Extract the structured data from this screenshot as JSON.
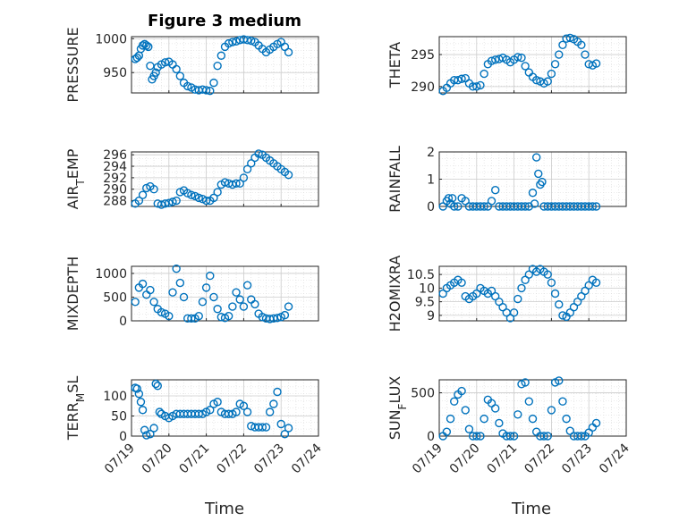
{
  "figure": {
    "title": "Figure 3 medium",
    "xlabel": "Time",
    "marker_color": "#0072bd"
  },
  "chart_data": [
    {
      "type": "scatter",
      "ylabel": "PRESSURE",
      "title": "Figure 3 medium",
      "xticks": [
        "07/19",
        "07/20",
        "07/21",
        "07/22",
        "07/23",
        "07/24"
      ],
      "xlim": [
        0,
        5
      ],
      "ylim": [
        920,
        1003
      ],
      "yticks": [
        950,
        1000
      ],
      "yticklabels": [
        "950",
        "1000"
      ],
      "x": [
        0.1,
        0.15,
        0.2,
        0.25,
        0.3,
        0.35,
        0.4,
        0.45,
        0.5,
        0.55,
        0.6,
        0.65,
        0.7,
        0.8,
        0.9,
        1.0,
        1.1,
        1.2,
        1.3,
        1.4,
        1.5,
        1.6,
        1.7,
        1.8,
        1.9,
        2.0,
        2.1,
        2.2,
        2.3,
        2.4,
        2.5,
        2.6,
        2.7,
        2.8,
        2.9,
        3.0,
        3.1,
        3.2,
        3.3,
        3.4,
        3.5,
        3.6,
        3.7,
        3.8,
        3.9,
        4.0,
        4.1,
        4.2
      ],
      "y": [
        970,
        972,
        975,
        985,
        990,
        992,
        990,
        988,
        960,
        940,
        945,
        950,
        958,
        962,
        965,
        966,
        962,
        955,
        945,
        935,
        930,
        928,
        925,
        924,
        925,
        924,
        923,
        935,
        960,
        975,
        988,
        993,
        995,
        996,
        998,
        999,
        998,
        997,
        995,
        990,
        985,
        980,
        984,
        988,
        992,
        995,
        988,
        980
      ]
    },
    {
      "type": "scatter",
      "ylabel": "THETA",
      "xticks": [
        "07/19",
        "07/20",
        "07/21",
        "07/22",
        "07/23",
        "07/24"
      ],
      "xlim": [
        0,
        5
      ],
      "ylim": [
        289,
        297.8
      ],
      "yticks": [
        290,
        295
      ],
      "yticklabels": [
        "290",
        "295"
      ],
      "x": [
        0.1,
        0.2,
        0.3,
        0.4,
        0.5,
        0.6,
        0.7,
        0.8,
        0.9,
        1.0,
        1.1,
        1.2,
        1.3,
        1.4,
        1.5,
        1.6,
        1.7,
        1.8,
        1.9,
        2.0,
        2.1,
        2.2,
        2.3,
        2.4,
        2.5,
        2.6,
        2.7,
        2.8,
        2.9,
        3.0,
        3.1,
        3.2,
        3.3,
        3.4,
        3.5,
        3.6,
        3.7,
        3.8,
        3.9,
        4.0,
        4.1,
        4.2
      ],
      "y": [
        289.3,
        289.8,
        290.5,
        291.0,
        291.0,
        291.2,
        291.3,
        290.5,
        290.0,
        290.0,
        290.2,
        292,
        293.5,
        294,
        294.2,
        294.3,
        294.5,
        294.2,
        293.8,
        294.2,
        294.6,
        294.5,
        293.2,
        292.2,
        291.5,
        291,
        290.8,
        290.5,
        290.8,
        292,
        293.5,
        295,
        296.5,
        297.5,
        297.6,
        297.4,
        297.0,
        296.5,
        295,
        293.5,
        293.3,
        293.6
      ]
    },
    {
      "type": "scatter",
      "ylabel": "AIR_TEMP",
      "xticks": [
        "07/19",
        "07/20",
        "07/21",
        "07/22",
        "07/23",
        "07/24"
      ],
      "xlim": [
        0,
        5
      ],
      "ylim": [
        287,
        296.5
      ],
      "yticks": [
        288,
        290,
        292,
        294,
        296
      ],
      "yticklabels": [
        "288",
        "290",
        "292",
        "294",
        "296"
      ],
      "x": [
        0.1,
        0.2,
        0.3,
        0.4,
        0.5,
        0.6,
        0.7,
        0.8,
        0.9,
        1.0,
        1.1,
        1.2,
        1.3,
        1.4,
        1.5,
        1.6,
        1.7,
        1.8,
        1.9,
        2.0,
        2.1,
        2.2,
        2.3,
        2.4,
        2.5,
        2.6,
        2.7,
        2.8,
        2.9,
        3.0,
        3.1,
        3.2,
        3.3,
        3.4,
        3.5,
        3.6,
        3.7,
        3.8,
        3.9,
        4.0,
        4.1,
        4.2
      ],
      "y": [
        287.5,
        288.0,
        289.0,
        290.2,
        290.5,
        290.0,
        287.5,
        287.3,
        287.5,
        287.6,
        287.8,
        288,
        289.5,
        289.8,
        289.3,
        289,
        288.8,
        288.5,
        288.3,
        288,
        288,
        288.5,
        289.5,
        290.8,
        291.2,
        291,
        290.8,
        291,
        291,
        292,
        293.5,
        294.5,
        295.5,
        296.2,
        296,
        295.5,
        295,
        294.5,
        294,
        293.5,
        293,
        292.5
      ]
    },
    {
      "type": "scatter",
      "ylabel": "RAINFALL",
      "xticks": [
        "07/19",
        "07/20",
        "07/21",
        "07/22",
        "07/23",
        "07/24"
      ],
      "xlim": [
        0,
        5
      ],
      "ylim": [
        0,
        2
      ],
      "yticks": [
        0,
        1,
        2
      ],
      "yticklabels": [
        "0",
        "1",
        "2"
      ],
      "x": [
        0.1,
        0.2,
        0.25,
        0.3,
        0.35,
        0.4,
        0.5,
        0.6,
        0.7,
        0.8,
        0.9,
        1.0,
        1.1,
        1.2,
        1.3,
        1.4,
        1.5,
        1.6,
        1.7,
        1.8,
        1.9,
        2.0,
        2.1,
        2.2,
        2.3,
        2.4,
        2.5,
        2.55,
        2.6,
        2.65,
        2.7,
        2.75,
        2.8,
        2.9,
        3.0,
        3.1,
        3.2,
        3.3,
        3.4,
        3.5,
        3.6,
        3.7,
        3.8,
        3.9,
        4.0,
        4.1,
        4.2
      ],
      "y": [
        0,
        0.2,
        0.3,
        0.1,
        0.3,
        0,
        0,
        0.3,
        0.2,
        0,
        0,
        0,
        0,
        0,
        0,
        0.2,
        0.6,
        0,
        0,
        0,
        0,
        0,
        0,
        0,
        0,
        0,
        0.5,
        0.1,
        1.8,
        1.2,
        0.8,
        0.9,
        0,
        0,
        0,
        0,
        0,
        0,
        0,
        0,
        0,
        0,
        0,
        0,
        0,
        0,
        0
      ]
    },
    {
      "type": "scatter",
      "ylabel": "MIXDEPTH",
      "xticks": [
        "07/19",
        "07/20",
        "07/21",
        "07/22",
        "07/23",
        "07/24"
      ],
      "xlim": [
        0,
        5
      ],
      "ylim": [
        0,
        1150
      ],
      "yticks": [
        0,
        500,
        1000
      ],
      "yticklabels": [
        "0",
        "500",
        "1000"
      ],
      "x": [
        0.1,
        0.2,
        0.3,
        0.4,
        0.5,
        0.6,
        0.7,
        0.8,
        0.9,
        1.0,
        1.1,
        1.2,
        1.3,
        1.4,
        1.5,
        1.6,
        1.7,
        1.8,
        1.9,
        2.0,
        2.1,
        2.2,
        2.3,
        2.4,
        2.5,
        2.6,
        2.7,
        2.8,
        2.9,
        3.0,
        3.1,
        3.2,
        3.3,
        3.4,
        3.5,
        3.6,
        3.7,
        3.8,
        3.9,
        4.0,
        4.1,
        4.2
      ],
      "y": [
        400,
        700,
        780,
        550,
        650,
        400,
        250,
        180,
        150,
        100,
        600,
        1100,
        800,
        500,
        50,
        50,
        50,
        100,
        400,
        700,
        950,
        500,
        250,
        80,
        60,
        100,
        300,
        600,
        450,
        300,
        750,
        450,
        350,
        150,
        80,
        50,
        40,
        50,
        60,
        80,
        120,
        300
      ]
    },
    {
      "type": "scatter",
      "ylabel": "H2OMIXRA",
      "xticks": [
        "07/19",
        "07/20",
        "07/21",
        "07/22",
        "07/23",
        "07/24"
      ],
      "xlim": [
        0,
        5
      ],
      "ylim": [
        8.8,
        10.8
      ],
      "yticks": [
        9,
        9.5,
        10,
        10.5
      ],
      "yticklabels": [
        "9",
        "9.5",
        "10",
        "10.5"
      ],
      "x": [
        0.1,
        0.2,
        0.3,
        0.4,
        0.5,
        0.6,
        0.7,
        0.8,
        0.9,
        1.0,
        1.1,
        1.2,
        1.3,
        1.4,
        1.5,
        1.6,
        1.7,
        1.8,
        1.9,
        2.0,
        2.1,
        2.2,
        2.3,
        2.4,
        2.5,
        2.6,
        2.7,
        2.8,
        2.9,
        3.0,
        3.1,
        3.2,
        3.3,
        3.4,
        3.5,
        3.6,
        3.7,
        3.8,
        3.9,
        4.0,
        4.1,
        4.2
      ],
      "y": [
        9.8,
        10.0,
        10.1,
        10.2,
        10.3,
        10.2,
        9.7,
        9.6,
        9.7,
        9.8,
        10.0,
        9.9,
        9.8,
        9.9,
        9.7,
        9.5,
        9.3,
        9.1,
        8.9,
        9.1,
        9.6,
        10.0,
        10.3,
        10.5,
        10.7,
        10.6,
        10.7,
        10.6,
        10.5,
        10.2,
        9.8,
        9.4,
        9.0,
        8.95,
        9.1,
        9.3,
        9.5,
        9.7,
        9.9,
        10.1,
        10.3,
        10.2
      ]
    },
    {
      "type": "scatter",
      "ylabel": "TERR_MSL",
      "xticks": [
        "07/19",
        "07/20",
        "07/21",
        "07/22",
        "07/23",
        "07/24"
      ],
      "xlim": [
        0,
        5
      ],
      "ylim": [
        0,
        140
      ],
      "yticks": [
        0,
        50,
        100
      ],
      "yticklabels": [
        "0",
        "50",
        "100"
      ],
      "x": [
        0.1,
        0.15,
        0.2,
        0.25,
        0.3,
        0.35,
        0.4,
        0.5,
        0.6,
        0.65,
        0.7,
        0.75,
        0.8,
        0.9,
        1.0,
        1.1,
        1.2,
        1.3,
        1.4,
        1.5,
        1.6,
        1.7,
        1.8,
        1.9,
        2.0,
        2.1,
        2.2,
        2.3,
        2.4,
        2.5,
        2.6,
        2.7,
        2.8,
        2.9,
        3.0,
        3.1,
        3.2,
        3.3,
        3.4,
        3.5,
        3.6,
        3.7,
        3.8,
        3.9,
        4.0,
        4.1,
        4.2
      ],
      "y": [
        120,
        118,
        105,
        85,
        65,
        15,
        2,
        5,
        20,
        130,
        125,
        60,
        55,
        50,
        45,
        50,
        55,
        55,
        55,
        55,
        55,
        55,
        55,
        55,
        60,
        65,
        80,
        85,
        60,
        55,
        55,
        55,
        60,
        80,
        75,
        60,
        25,
        22,
        22,
        22,
        22,
        60,
        80,
        110,
        30,
        5,
        20
      ]
    },
    {
      "type": "scatter",
      "ylabel": "SUN_FLUX",
      "xticks": [
        "07/19",
        "07/20",
        "07/21",
        "07/22",
        "07/23",
        "07/24"
      ],
      "xlim": [
        0,
        5
      ],
      "ylim": [
        0,
        650
      ],
      "yticks": [
        0,
        500
      ],
      "yticklabels": [
        "0",
        "500"
      ],
      "x": [
        0.1,
        0.2,
        0.3,
        0.4,
        0.5,
        0.6,
        0.7,
        0.8,
        0.9,
        1.0,
        1.1,
        1.2,
        1.3,
        1.4,
        1.5,
        1.6,
        1.7,
        1.8,
        1.9,
        2.0,
        2.1,
        2.2,
        2.3,
        2.4,
        2.5,
        2.6,
        2.7,
        2.8,
        2.9,
        3.0,
        3.1,
        3.2,
        3.3,
        3.4,
        3.5,
        3.6,
        3.7,
        3.8,
        3.9,
        4.0,
        4.1,
        4.2
      ],
      "y": [
        0,
        50,
        200,
        400,
        480,
        520,
        300,
        80,
        0,
        0,
        0,
        200,
        420,
        380,
        320,
        150,
        30,
        0,
        0,
        0,
        250,
        600,
        620,
        400,
        200,
        50,
        0,
        0,
        0,
        300,
        620,
        640,
        400,
        200,
        60,
        0,
        0,
        0,
        0,
        40,
        100,
        150
      ]
    }
  ]
}
